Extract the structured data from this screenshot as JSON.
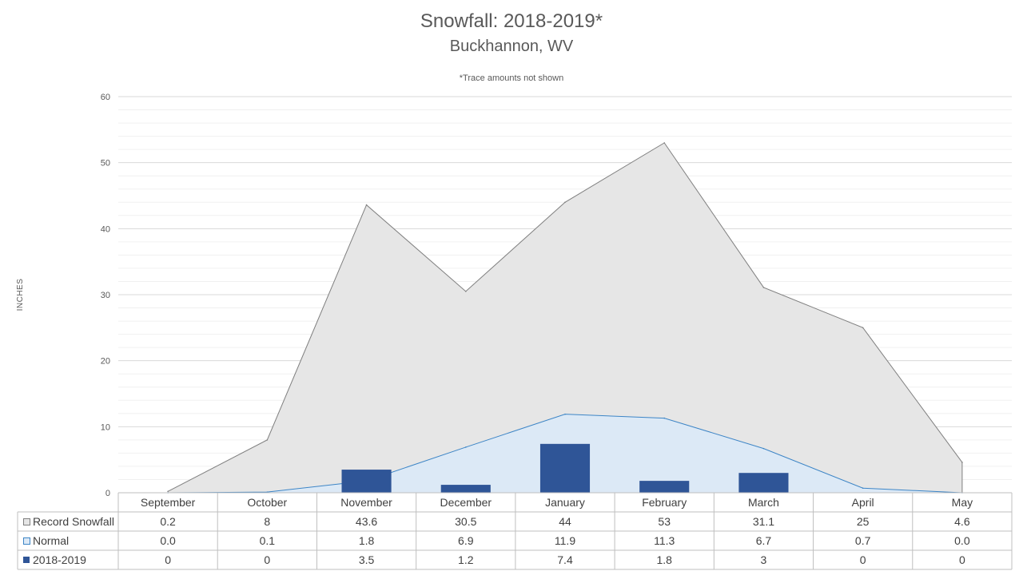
{
  "chart_data": {
    "type": "area",
    "title": "Snowfall: 2018-2019*",
    "subtitle": "Buckhannon, WV",
    "annotation": "*Trace amounts not shown",
    "ylabel": "INCHES",
    "xlabel": "",
    "ylim": [
      0,
      60
    ],
    "yticks": [
      0,
      10,
      20,
      30,
      40,
      50,
      60
    ],
    "grid": true,
    "legend": "data-table-left",
    "categories": [
      "September",
      "October",
      "November",
      "December",
      "January",
      "February",
      "March",
      "April",
      "May"
    ],
    "series": [
      {
        "name": "Record Snowfall",
        "kind": "area",
        "color": "#e6e6e6",
        "line_color": "#7f7f7f",
        "values": [
          0.2,
          8,
          43.6,
          30.5,
          44,
          53,
          31.1,
          25,
          4.6
        ],
        "labels": [
          "0.2",
          "8",
          "43.6",
          "30.5",
          "44",
          "53",
          "31.1",
          "25",
          "4.6"
        ]
      },
      {
        "name": "Normal",
        "kind": "area",
        "color": "#dce9f6",
        "line_color": "#3d85c6",
        "values": [
          0.0,
          0.1,
          1.8,
          6.9,
          11.9,
          11.3,
          6.7,
          0.7,
          0.0
        ],
        "labels": [
          "0.0",
          "0.1",
          "1.8",
          "6.9",
          "11.9",
          "11.3",
          "6.7",
          "0.7",
          "0.0"
        ]
      },
      {
        "name": "2018-2019",
        "kind": "bar",
        "color": "#2f5597",
        "values": [
          0,
          0,
          3.5,
          1.2,
          7.4,
          1.8,
          3,
          0,
          0
        ],
        "labels": [
          "0",
          "0",
          "3.5",
          "1.2",
          "7.4",
          "1.8",
          "3",
          "0",
          "0"
        ]
      }
    ]
  }
}
